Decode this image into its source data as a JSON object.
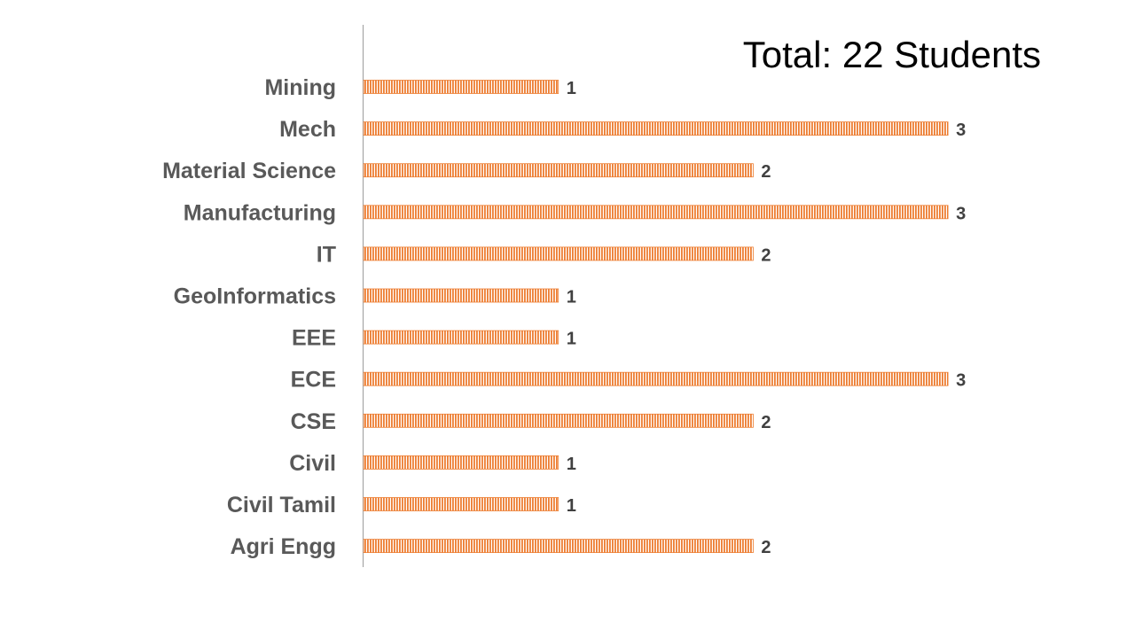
{
  "chart_data": {
    "type": "bar",
    "orientation": "horizontal",
    "title": "Total: 22 Students",
    "categories": [
      "Agri Engg",
      "Civil Tamil",
      "Civil",
      "CSE",
      "ECE",
      "EEE",
      "GeoInformatics",
      "IT",
      "Manufacturing",
      "Material Science",
      "Mech",
      "Mining"
    ],
    "values": [
      2,
      1,
      1,
      2,
      3,
      1,
      1,
      2,
      3,
      2,
      3,
      1
    ],
    "xlim": [
      0,
      3
    ],
    "xlabel": "",
    "ylabel": "",
    "data_labels": true,
    "grid": false,
    "legend": "none",
    "bar_color": "#ED7D31",
    "bar_pattern": "vertical-hatch"
  }
}
